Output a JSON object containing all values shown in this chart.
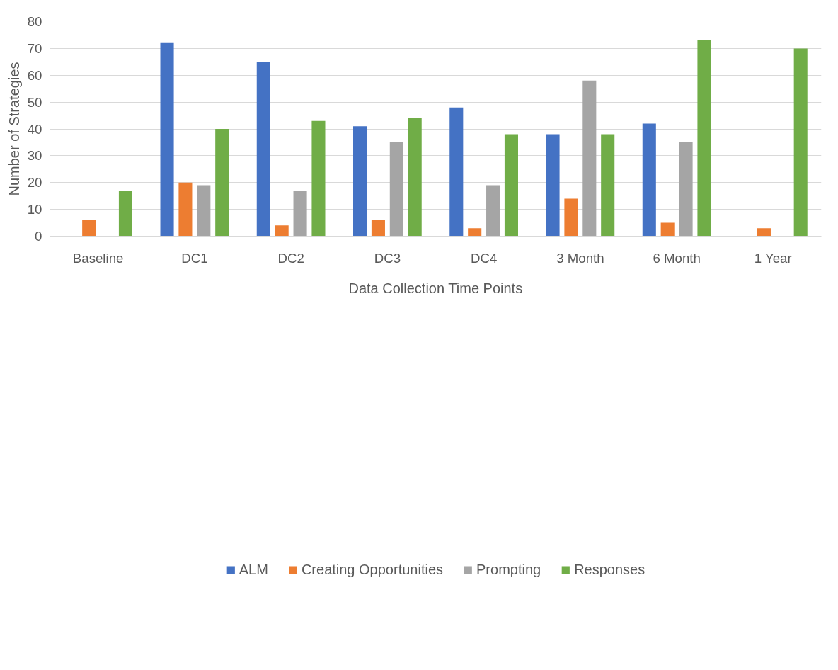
{
  "chart_data": {
    "type": "bar",
    "xlabel": "Data Collection Time Points",
    "ylabel": "Number of Strategies",
    "categories": [
      "Baseline",
      "DC1",
      "DC2",
      "DC3",
      "DC4",
      "3 Month",
      "6 Month",
      "1 Year"
    ],
    "series": [
      {
        "name": "ALM",
        "color": "#4472c4",
        "values": [
          0,
          72,
          65,
          41,
          48,
          38,
          42,
          0
        ]
      },
      {
        "name": "Creating Opportunities",
        "color": "#ed7d31",
        "values": [
          6,
          20,
          4,
          6,
          3,
          14,
          5,
          3
        ]
      },
      {
        "name": "Prompting",
        "color": "#a5a5a5",
        "values": [
          0,
          19,
          17,
          35,
          19,
          58,
          35,
          0
        ]
      },
      {
        "name": "Responses",
        "color": "#70ad47",
        "values": [
          17,
          40,
          43,
          44,
          38,
          38,
          73,
          70
        ]
      }
    ],
    "ylim": [
      0,
      80
    ],
    "yticks": [
      0,
      10,
      20,
      30,
      40,
      50,
      60,
      70,
      80
    ],
    "grid": "y",
    "legend": "bottom"
  }
}
